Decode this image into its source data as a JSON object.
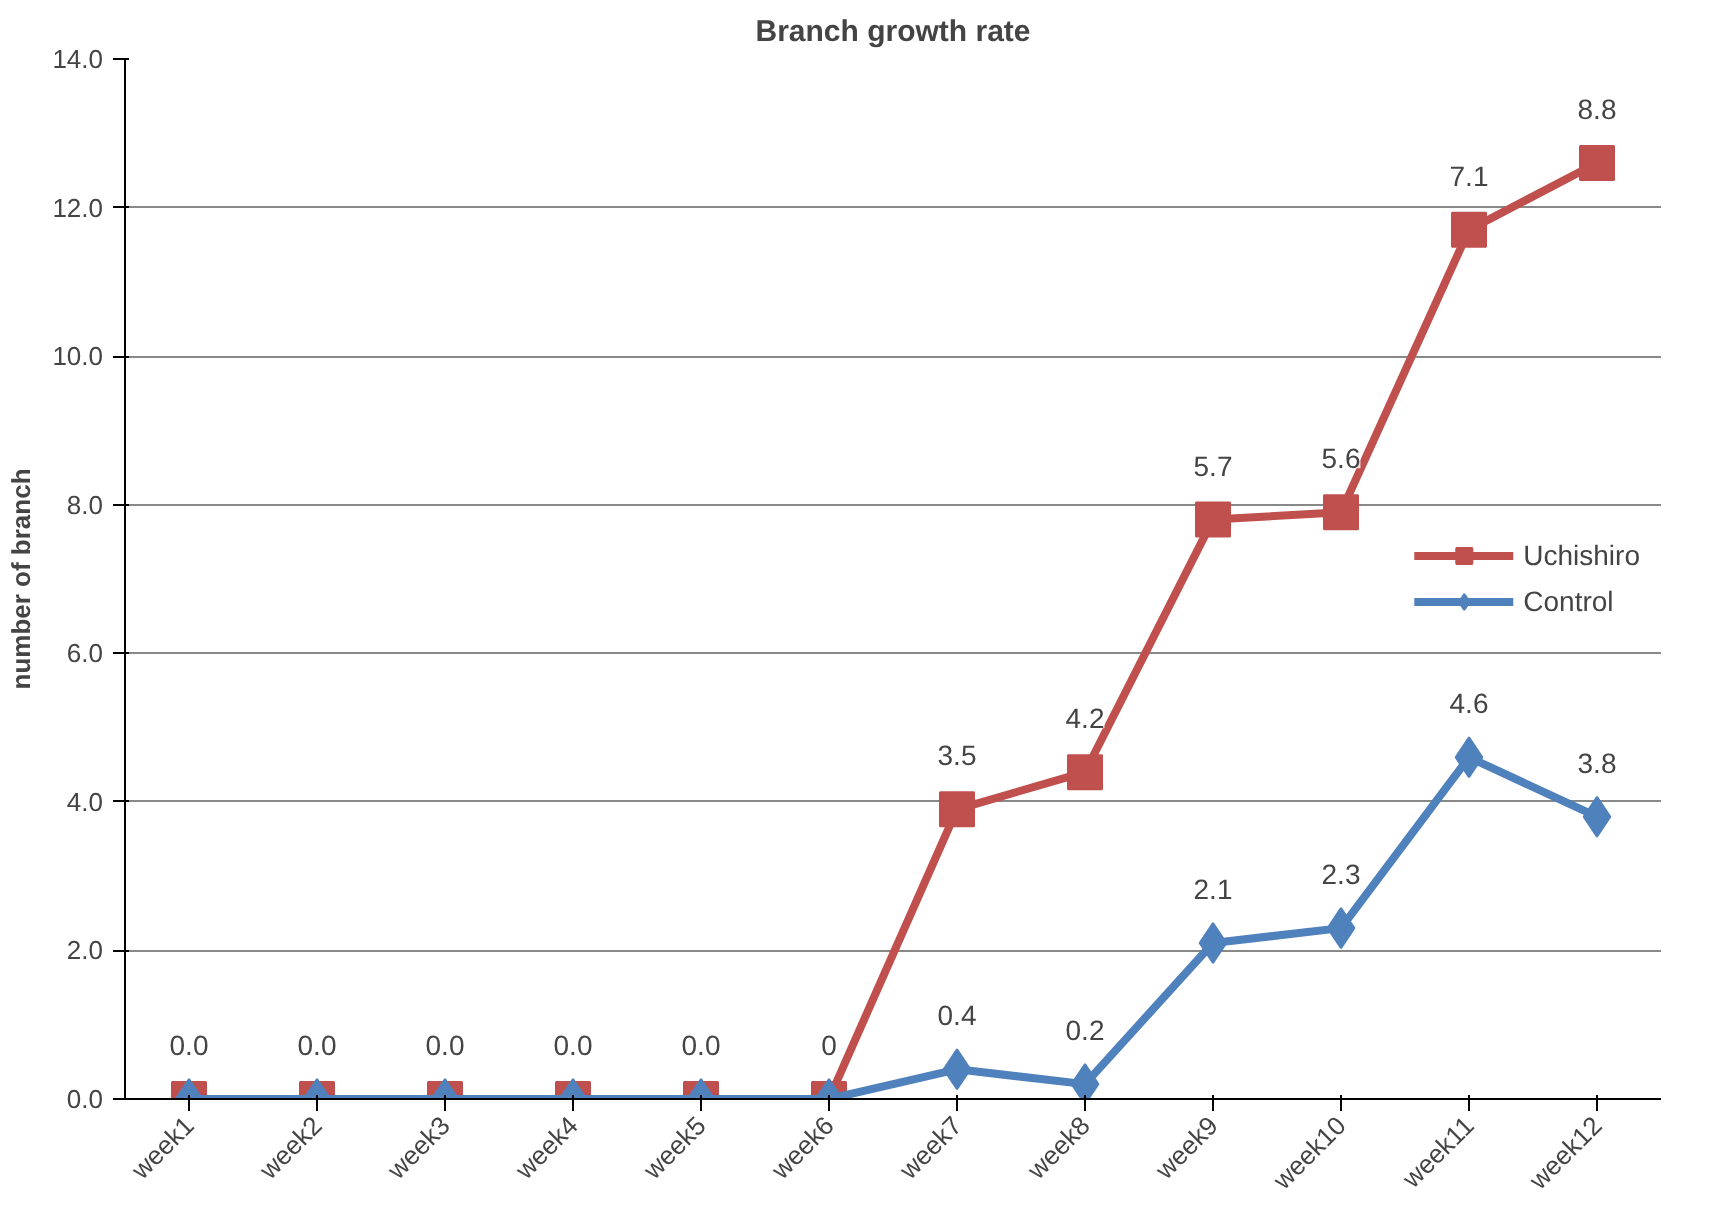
{
  "chart_data": {
    "type": "line",
    "title": "Branch growth rate",
    "ylabel": "number of branch",
    "categories": [
      "week1",
      "week2",
      "week3",
      "week4",
      "week5",
      "week6",
      "week7",
      "week8",
      "week9",
      "week10",
      "week11",
      "week12"
    ],
    "series": [
      {
        "name": "Uchishiro",
        "color": "#c0504d",
        "marker": "square",
        "values": [
          0,
          0,
          0,
          0,
          0,
          0,
          3.9,
          4.4,
          7.8,
          7.9,
          11.7,
          12.6
        ]
      },
      {
        "name": "Control",
        "color": "#4f81bd",
        "marker": "diamond",
        "values": [
          0,
          0,
          0,
          0,
          0,
          0,
          0.4,
          0.2,
          2.1,
          2.3,
          4.6,
          3.8
        ],
        "value_labels": [
          null,
          null,
          null,
          null,
          null,
          null,
          "0.4",
          "0.2",
          "2.1",
          "2.3",
          "4.6",
          "3.8"
        ]
      }
    ],
    "ylim": [
      0,
      14
    ],
    "yticks": [
      {
        "value": 0,
        "label": "0.0"
      },
      {
        "value": 2,
        "label": "2.0"
      },
      {
        "value": 4,
        "label": "4.0"
      },
      {
        "value": 6,
        "label": "6.0"
      },
      {
        "value": 8,
        "label": "8.0"
      },
      {
        "value": 10,
        "label": "10.0"
      },
      {
        "value": 12,
        "label": "12.0"
      },
      {
        "value": 14,
        "label": "14.0"
      }
    ],
    "annotations": [
      {
        "text": "0.0",
        "x": "week1",
        "y": 0
      },
      {
        "text": "0.0",
        "x": "week2",
        "y": 0
      },
      {
        "text": "0.0",
        "x": "week3",
        "y": 0
      },
      {
        "text": "0.0",
        "x": "week4",
        "y": 0
      },
      {
        "text": "0.0",
        "x": "week5",
        "y": 0
      },
      {
        "text": "0",
        "x": "week6",
        "y": 0
      },
      {
        "text": "3.5",
        "x": "week7",
        "y": 3.9
      },
      {
        "text": "4.2",
        "x": "week8",
        "y": 4.4
      },
      {
        "text": "5.7",
        "x": "week9",
        "y": 7.8
      },
      {
        "text": "5.6",
        "x": "week10",
        "y": 7.9
      },
      {
        "text": "7.1",
        "x": "week11",
        "y": 11.7
      },
      {
        "text": "8.8",
        "x": "week12",
        "y": 12.6
      }
    ],
    "grid": "y",
    "legend": "right",
    "line_style": "solid"
  }
}
